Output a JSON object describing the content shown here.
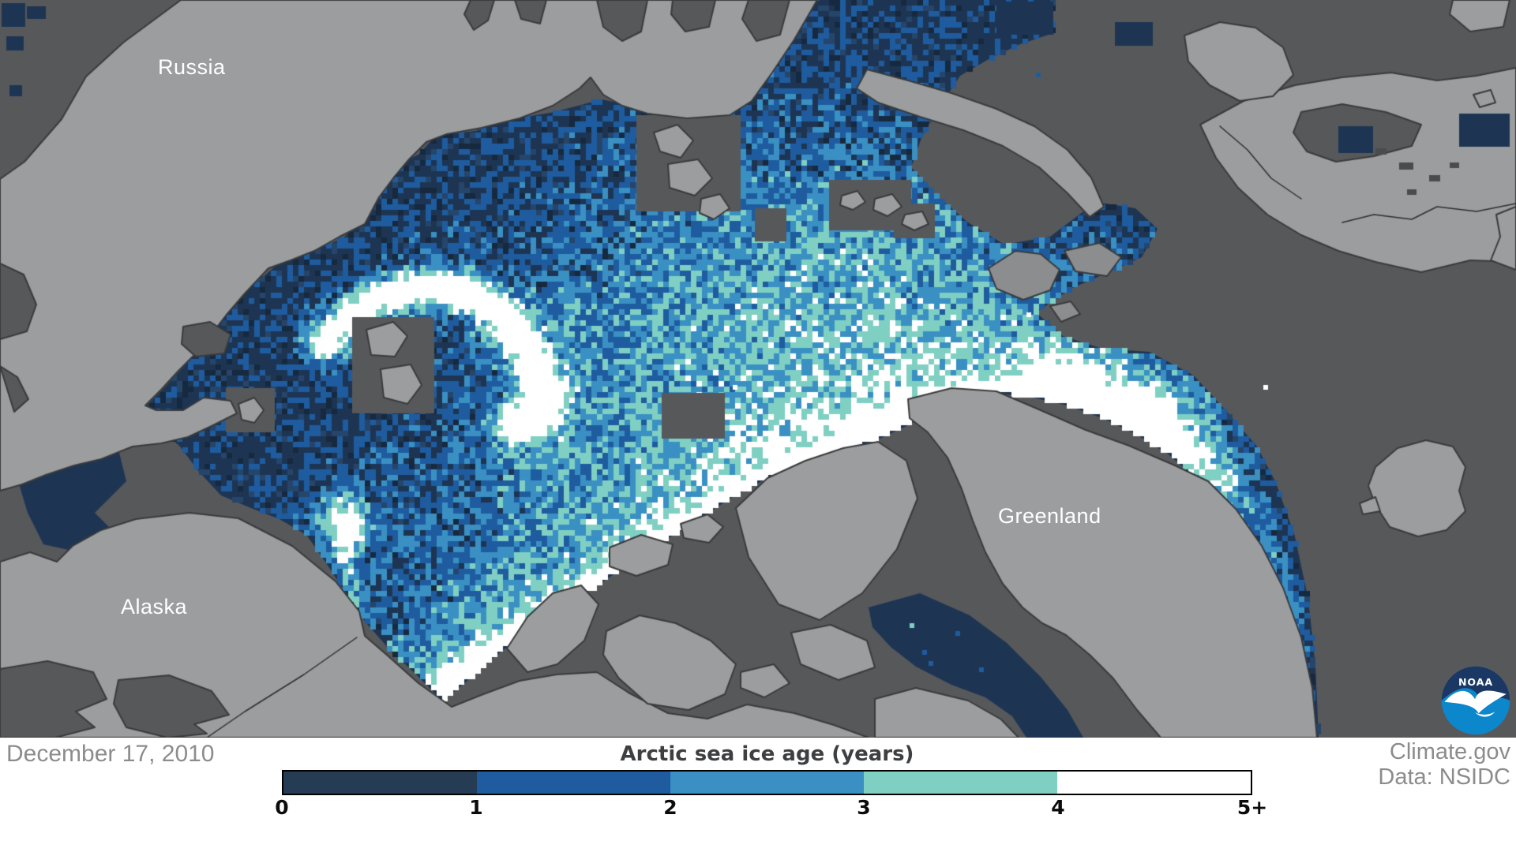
{
  "map": {
    "labels": [
      {
        "id": "russia",
        "text": "Russia"
      },
      {
        "id": "alaska",
        "text": "Alaska"
      },
      {
        "id": "greenland",
        "text": "Greenland"
      }
    ],
    "colors": {
      "ocean": "#57585A",
      "land": "#9B9D9E",
      "land_secondary": "#8B8D8F",
      "coastline": "#3A3B3D",
      "first_year_ice": "#1D3553",
      "ice_fleck_dark": "#16293E",
      "ice_fleck_light": "#26456A"
    }
  },
  "legend": {
    "title": "Arctic sea ice age (years)",
    "ticks": [
      "0",
      "1",
      "2",
      "3",
      "4",
      "5+"
    ],
    "colors": [
      "#263C54",
      "#1E5C9F",
      "#3A90C3",
      "#80CFC3",
      "#FFFFFF"
    ]
  },
  "footer": {
    "date": "December 17, 2010",
    "credit": "Climate.gov",
    "data_source": "Data: NSIDC"
  },
  "logo": {
    "text": "NOAA",
    "top_color": "#1B3864",
    "bottom_color": "#0D87CC"
  }
}
